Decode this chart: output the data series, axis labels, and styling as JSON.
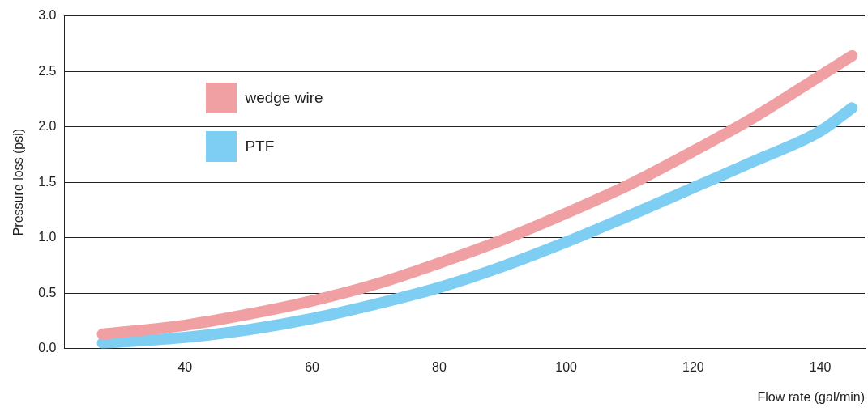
{
  "chart_data": {
    "type": "line",
    "xlabel": "Flow rate (gal/min)",
    "ylabel": "Pressure loss (psi)",
    "xlim": [
      21,
      147
    ],
    "xticks": [
      40,
      60,
      80,
      100,
      120,
      140
    ],
    "ylim": [
      0,
      3.0
    ],
    "yticks": [
      {
        "value": 0,
        "label": "0.0"
      },
      {
        "value": 0.5,
        "label": "0.5"
      },
      {
        "value": 1,
        "label": "1.0"
      },
      {
        "value": 1.5,
        "label": "1.5"
      },
      {
        "value": 2,
        "label": "2.0"
      },
      {
        "value": 2.5,
        "label": "2.5"
      },
      {
        "value": 3,
        "label": "3.0"
      }
    ],
    "grid": "y",
    "legend": "top left",
    "marker": "none",
    "line_style": "solid",
    "series": [
      {
        "name": "wedge wire",
        "color": "#f0a0a2",
        "x": [
          27,
          40,
          50,
          60,
          70,
          80,
          90,
          100,
          110,
          120,
          130,
          140,
          145
        ],
        "values": [
          0.13,
          0.21,
          0.31,
          0.43,
          0.58,
          0.77,
          0.98,
          1.22,
          1.48,
          1.78,
          2.1,
          2.46,
          2.64
        ]
      },
      {
        "name": "PTF",
        "color": "#7ecef4",
        "x": [
          27,
          40,
          50,
          60,
          70,
          80,
          90,
          100,
          110,
          120,
          130,
          140,
          145
        ],
        "values": [
          0.05,
          0.1,
          0.17,
          0.27,
          0.4,
          0.55,
          0.74,
          0.96,
          1.2,
          1.45,
          1.7,
          1.96,
          2.17
        ]
      }
    ]
  }
}
